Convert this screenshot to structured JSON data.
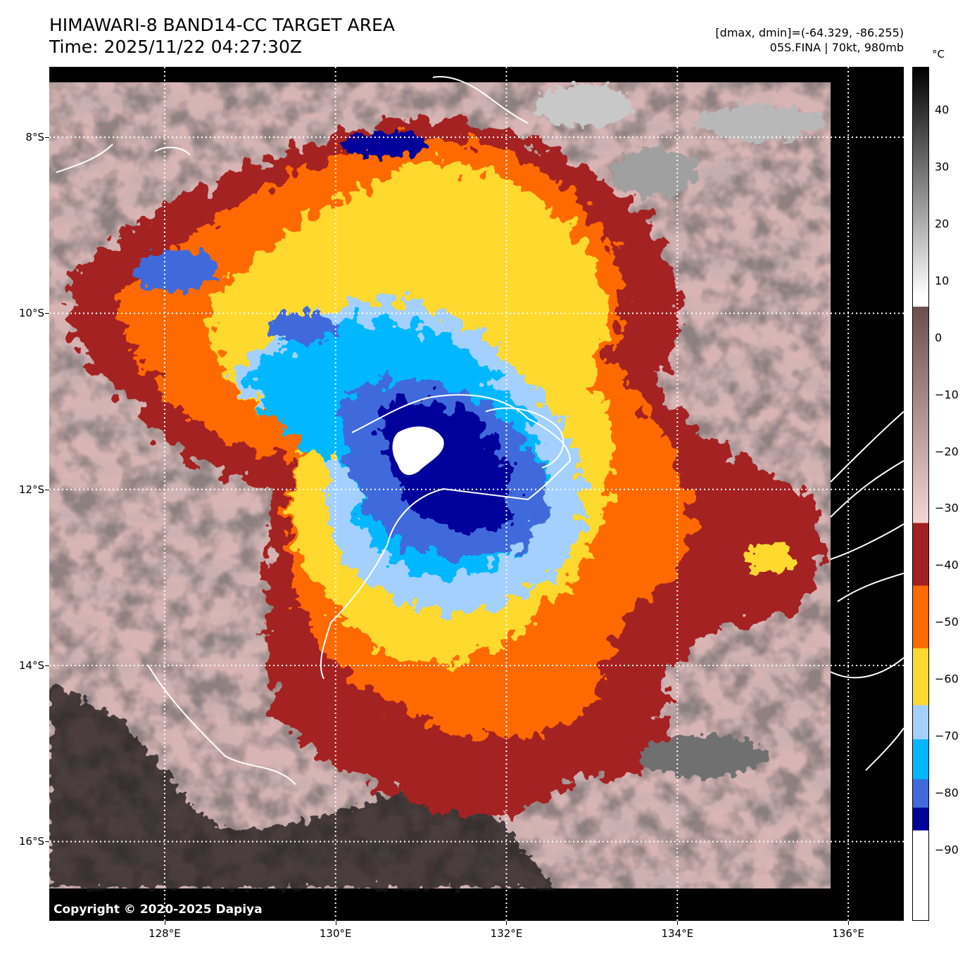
{
  "title": {
    "line1": "HIMAWARI-8 BAND14-CC TARGET AREA",
    "line2": "Time: 2025/11/22 04:27:30Z"
  },
  "meta": {
    "line1": "[dmax, dmin]=(-64.329, -86.255)",
    "line2": "05S.FINA | 70kt, 980mb"
  },
  "map": {
    "copyright": "Copyright © 2020-2025 Dapiya",
    "lat_labels": [
      "8°S",
      "10°S",
      "12°S",
      "14°S",
      "16°S"
    ],
    "lon_labels": [
      "128°E",
      "130°E",
      "132°E",
      "134°E",
      "136°E"
    ],
    "lat_values": [
      -8,
      -10,
      -12,
      -14,
      -16
    ],
    "lon_values": [
      128,
      130,
      132,
      134,
      136
    ],
    "lat_range": [
      -16.9,
      -7.2
    ],
    "lon_range": [
      126.65,
      136.65
    ],
    "gridlines": true,
    "storm_center": {
      "lat": -11.5,
      "lon": 130.95
    }
  },
  "colorbar": {
    "unit": "°C",
    "labels": [
      "40",
      "30",
      "20",
      "10",
      "0",
      "−10",
      "−20",
      "−30",
      "−40",
      "−50",
      "−60",
      "−70",
      "−80",
      "−90"
    ],
    "label_values": [
      40,
      30,
      20,
      10,
      0,
      -10,
      -20,
      -30,
      -40,
      -50,
      -60,
      -70,
      -80,
      -90
    ],
    "range": [
      -100,
      50
    ],
    "segments": [
      {
        "from": 50,
        "to": 10,
        "colors": [
          "#000000",
          "#ffffff"
        ]
      },
      {
        "from": 8,
        "to": -30,
        "colors": [
          "#6b4f4f",
          "#f5d5d5"
        ]
      },
      {
        "from": -30,
        "to": -41,
        "color": "#a52020"
      },
      {
        "from": -41,
        "to": -52,
        "color": "#ff6a00"
      },
      {
        "from": -52,
        "to": -62,
        "color": "#ffd92e"
      },
      {
        "from": -62,
        "to": -68,
        "color": "#a3d0ff"
      },
      {
        "from": -68,
        "to": -75,
        "color": "#00b8ff"
      },
      {
        "from": -75,
        "to": -80,
        "color": "#3f6bdc"
      },
      {
        "from": -80,
        "to": -84,
        "color": "#00009a"
      },
      {
        "from": -84,
        "to": -100,
        "color": "#ffffff"
      }
    ]
  }
}
